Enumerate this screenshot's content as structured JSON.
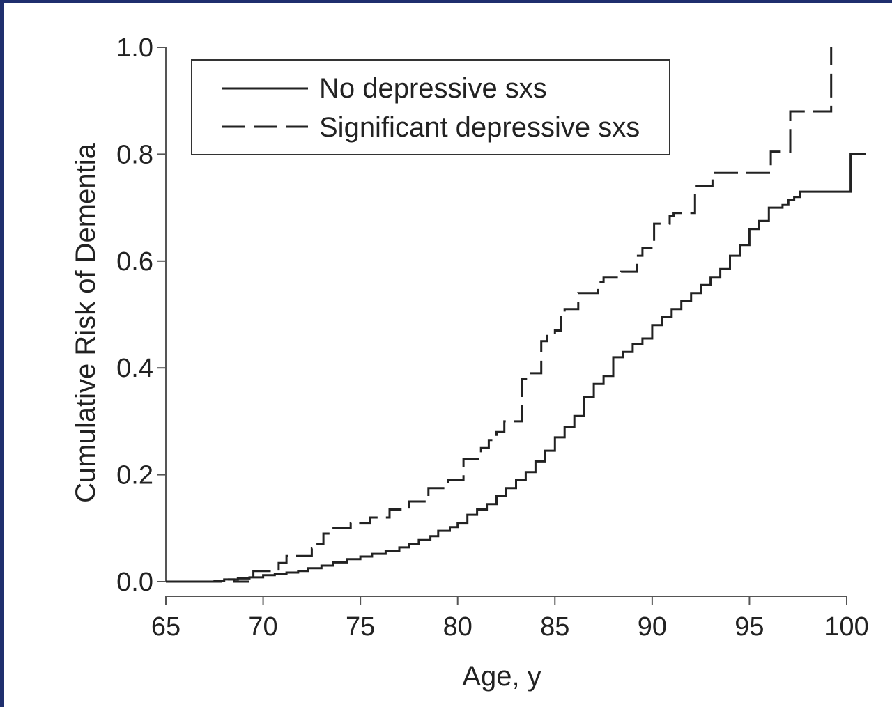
{
  "chart_data": {
    "type": "line",
    "xlabel": "Age, y",
    "ylabel": "Cumulative Risk of Dementia",
    "xlim": [
      65,
      101
    ],
    "ylim": [
      0,
      1.0
    ],
    "x_ticks": [
      65,
      70,
      75,
      80,
      85,
      90,
      95,
      100
    ],
    "x_tick_labels": [
      "65",
      "70",
      "75",
      "80",
      "85",
      "90",
      "95",
      "100"
    ],
    "y_ticks": [
      0,
      0.2,
      0.4,
      0.6,
      0.8,
      1.0
    ],
    "y_tick_labels": [
      "0.0",
      "0.2",
      "0.4",
      "0.6",
      "0.8",
      "1.0"
    ],
    "grid": false,
    "legend_position": "top-left",
    "series": [
      {
        "name": "No depressive sxs",
        "style": "solid",
        "color": "#222222",
        "points": [
          [
            65,
            0.0
          ],
          [
            67,
            0.0
          ],
          [
            67.5,
            0.002
          ],
          [
            68,
            0.004
          ],
          [
            68.7,
            0.006
          ],
          [
            69.3,
            0.008
          ],
          [
            70,
            0.012
          ],
          [
            70.6,
            0.014
          ],
          [
            71.2,
            0.017
          ],
          [
            71.8,
            0.02
          ],
          [
            72.3,
            0.025
          ],
          [
            73,
            0.03
          ],
          [
            73.6,
            0.036
          ],
          [
            74.3,
            0.042
          ],
          [
            75,
            0.047
          ],
          [
            75.6,
            0.052
          ],
          [
            76.3,
            0.058
          ],
          [
            77,
            0.064
          ],
          [
            77.5,
            0.07
          ],
          [
            78,
            0.078
          ],
          [
            78.6,
            0.085
          ],
          [
            79,
            0.095
          ],
          [
            79.6,
            0.102
          ],
          [
            80,
            0.11
          ],
          [
            80.5,
            0.125
          ],
          [
            81,
            0.135
          ],
          [
            81.5,
            0.145
          ],
          [
            82,
            0.16
          ],
          [
            82.5,
            0.175
          ],
          [
            83,
            0.19
          ],
          [
            83.5,
            0.205
          ],
          [
            84,
            0.225
          ],
          [
            84.5,
            0.245
          ],
          [
            85,
            0.27
          ],
          [
            85.5,
            0.29
          ],
          [
            86,
            0.31
          ],
          [
            86.5,
            0.345
          ],
          [
            87,
            0.37
          ],
          [
            87.5,
            0.385
          ],
          [
            88,
            0.42
          ],
          [
            88.5,
            0.43
          ],
          [
            89,
            0.445
          ],
          [
            89.5,
            0.455
          ],
          [
            90,
            0.48
          ],
          [
            90.5,
            0.495
          ],
          [
            91,
            0.51
          ],
          [
            91.5,
            0.525
          ],
          [
            92,
            0.54
          ],
          [
            92.5,
            0.555
          ],
          [
            93,
            0.57
          ],
          [
            93.5,
            0.585
          ],
          [
            94,
            0.61
          ],
          [
            94.5,
            0.63
          ],
          [
            95,
            0.66
          ],
          [
            95.5,
            0.675
          ],
          [
            96,
            0.7
          ],
          [
            96.7,
            0.705
          ],
          [
            97,
            0.715
          ],
          [
            97.3,
            0.72
          ],
          [
            97.6,
            0.73
          ],
          [
            100,
            0.73
          ],
          [
            100.2,
            0.8
          ],
          [
            101,
            0.8
          ]
        ]
      },
      {
        "name": "Significant depressive sxs",
        "style": "dashed",
        "color": "#222222",
        "points": [
          [
            65,
            0.0
          ],
          [
            67.5,
            0.0
          ],
          [
            68,
            0.004
          ],
          [
            68.5,
            0.0
          ],
          [
            69.5,
            0.0
          ],
          [
            69.5,
            0.02
          ],
          [
            70.8,
            0.02
          ],
          [
            70.8,
            0.035
          ],
          [
            71.2,
            0.048
          ],
          [
            72.3,
            0.048
          ],
          [
            72.5,
            0.062
          ],
          [
            72.7,
            0.07
          ],
          [
            73.1,
            0.09
          ],
          [
            73.5,
            0.1
          ],
          [
            74,
            0.1
          ],
          [
            74.5,
            0.11
          ],
          [
            75.2,
            0.11
          ],
          [
            75.5,
            0.12
          ],
          [
            76.2,
            0.12
          ],
          [
            76.5,
            0.135
          ],
          [
            77.3,
            0.135
          ],
          [
            77.5,
            0.15
          ],
          [
            78.2,
            0.15
          ],
          [
            78.5,
            0.175
          ],
          [
            79,
            0.175
          ],
          [
            79.5,
            0.19
          ],
          [
            80.3,
            0.19
          ],
          [
            80.3,
            0.23
          ],
          [
            81.2,
            0.23
          ],
          [
            81.2,
            0.25
          ],
          [
            81.6,
            0.265
          ],
          [
            82,
            0.28
          ],
          [
            82.4,
            0.3
          ],
          [
            83.1,
            0.3
          ],
          [
            83.3,
            0.38
          ],
          [
            83.6,
            0.39
          ],
          [
            84,
            0.39
          ],
          [
            84.3,
            0.45
          ],
          [
            84.6,
            0.46
          ],
          [
            85,
            0.47
          ],
          [
            85.3,
            0.5
          ],
          [
            85.5,
            0.51
          ],
          [
            86.2,
            0.51
          ],
          [
            86.2,
            0.54
          ],
          [
            87.2,
            0.54
          ],
          [
            87.2,
            0.56
          ],
          [
            87.5,
            0.57
          ],
          [
            88.2,
            0.57
          ],
          [
            88.3,
            0.575
          ],
          [
            88.4,
            0.58
          ],
          [
            89,
            0.58
          ],
          [
            89.2,
            0.61
          ],
          [
            89.5,
            0.625
          ],
          [
            90,
            0.625
          ],
          [
            90.1,
            0.67
          ],
          [
            90.7,
            0.67
          ],
          [
            90.9,
            0.685
          ],
          [
            91.1,
            0.69
          ],
          [
            91.5,
            0.69
          ],
          [
            92.2,
            0.69
          ],
          [
            92.2,
            0.74
          ],
          [
            93.1,
            0.74
          ],
          [
            93.1,
            0.765
          ],
          [
            96.1,
            0.765
          ],
          [
            96.1,
            0.805
          ],
          [
            96.7,
            0.805
          ],
          [
            97.1,
            0.805
          ],
          [
            97.1,
            0.88
          ],
          [
            99.2,
            0.88
          ],
          [
            99.2,
            1.0
          ]
        ]
      }
    ]
  }
}
